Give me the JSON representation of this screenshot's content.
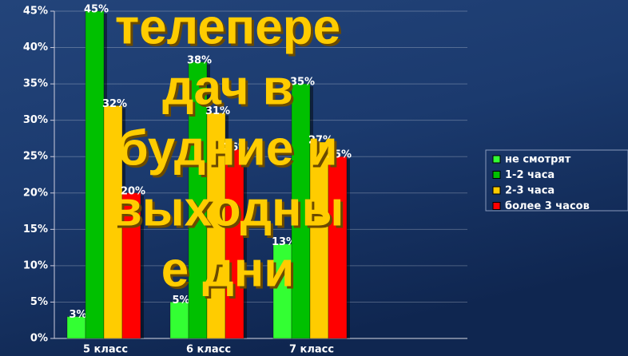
{
  "chart_data": {
    "type": "bar",
    "title": [
      "телепере",
      "дач в",
      "будние и",
      "выходны",
      "е дни"
    ],
    "categories": [
      "5 класс",
      "6 класс",
      "7 класс"
    ],
    "series": [
      {
        "name": "не смотрят",
        "color": "#33ff33",
        "values": [
          3,
          5,
          13
        ],
        "value_labels": [
          "3%",
          "5%",
          "13%"
        ]
      },
      {
        "name": "1-2 часа",
        "color": "#00c000",
        "values": [
          45,
          38,
          35
        ],
        "value_labels": [
          "45%",
          "38%",
          "35%"
        ]
      },
      {
        "name": "2-3 часа",
        "color": "#ffcc00",
        "values": [
          32,
          31,
          27
        ],
        "value_labels": [
          "32%",
          "31%",
          "27%"
        ]
      },
      {
        "name": "более 3 часов",
        "color": "#ff0000",
        "values": [
          20,
          26,
          25
        ],
        "value_labels": [
          "20%",
          "26%",
          "25%"
        ]
      }
    ],
    "ylim": [
      0,
      45
    ],
    "yticks": [
      {
        "value": 0,
        "label": "0%"
      },
      {
        "value": 5,
        "label": "5%"
      },
      {
        "value": 10,
        "label": "10%"
      },
      {
        "value": 15,
        "label": "15%"
      },
      {
        "value": 20,
        "label": "20%"
      },
      {
        "value": 25,
        "label": "25%"
      },
      {
        "value": 30,
        "label": "30%"
      },
      {
        "value": 35,
        "label": "35%"
      },
      {
        "value": 40,
        "label": "40%"
      },
      {
        "value": 45,
        "label": "45%"
      }
    ],
    "grid": true
  }
}
